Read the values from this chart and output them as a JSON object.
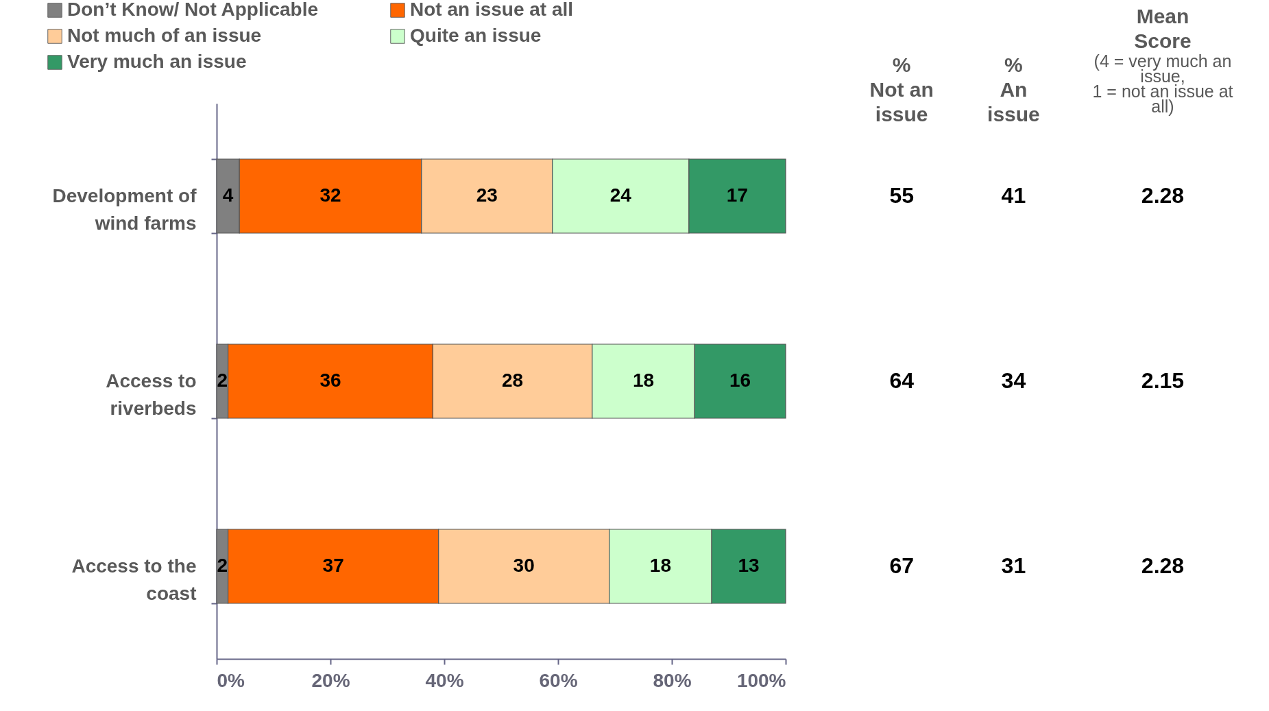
{
  "chart_data": [
    {
      "type": "bar",
      "orientation": "horizontal",
      "stacked": true,
      "data_labels": true,
      "legend": "top left",
      "grid": false,
      "categories": [
        "Development of\nwind farms",
        "Access to\nriverbeds",
        "Access to the\ncoast"
      ],
      "series": [
        {
          "name": "Don’t Know/ Not Applicable",
          "color": "#808080",
          "values": [
            4,
            2,
            2
          ]
        },
        {
          "name": "Not an issue at all",
          "color": "#ff6600",
          "values": [
            32,
            36,
            37
          ]
        },
        {
          "name": "Not much of an issue",
          "color": "#ffcc99",
          "values": [
            23,
            28,
            30
          ]
        },
        {
          "name": "Quite an issue",
          "color": "#ccffcc",
          "values": [
            24,
            18,
            18
          ]
        },
        {
          "name": "Very much an issue",
          "color": "#339966",
          "values": [
            17,
            16,
            13
          ]
        }
      ],
      "xlim": [
        0,
        100
      ],
      "xticks": [
        {
          "value": 0,
          "label": "0%"
        },
        {
          "value": 20,
          "label": "20%"
        },
        {
          "value": 40,
          "label": "40%"
        },
        {
          "value": 60,
          "label": "60%"
        },
        {
          "value": 80,
          "label": "80%"
        },
        {
          "value": 100,
          "label": "100%"
        }
      ]
    },
    {
      "type": "other",
      "data_labels": true,
      "categories": [
        "%\nNot an\nissue",
        "%\nAn\nissue",
        "Mean\nScore"
      ],
      "annotations": [
        "(4 = very much an\nissue,\n1 = not an issue at\nall)"
      ],
      "series": [
        {
          "values": [
            55,
            41,
            2.28
          ]
        },
        {
          "values": [
            64,
            34,
            2.15
          ]
        },
        {
          "values": [
            67,
            31,
            2.28
          ]
        }
      ]
    }
  ]
}
